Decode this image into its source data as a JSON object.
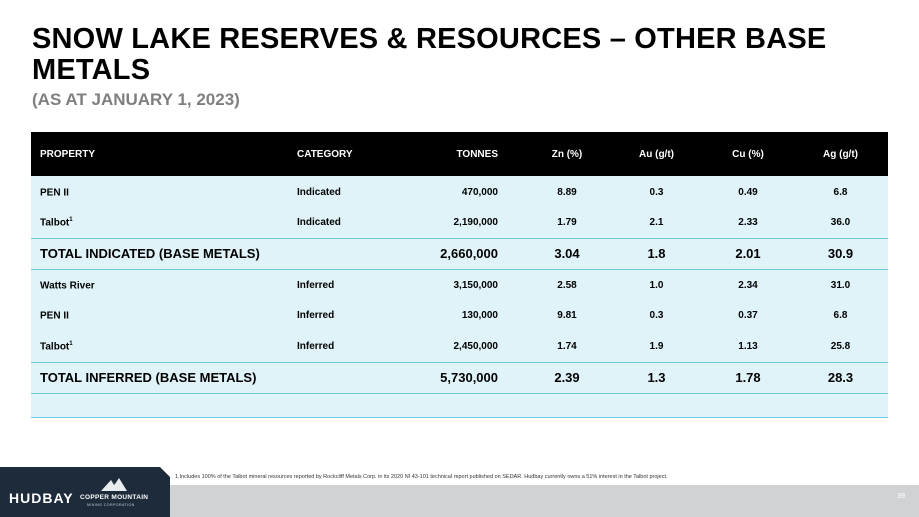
{
  "title": "SNOW LAKE RESERVES & RESOURCES – OTHER BASE METALS",
  "subtitle": "(AS AT JANUARY 1, 2023)",
  "table": {
    "headers": [
      "PROPERTY",
      "CATEGORY",
      "TONNES",
      "Zn (%)",
      "Au (g/t)",
      "Cu (%)",
      "Ag (g/t)"
    ],
    "indicated_rows": [
      {
        "property": "PEN II",
        "sup": "",
        "category": "Indicated",
        "tonnes": "470,000",
        "zn": "8.89",
        "au": "0.3",
        "cu": "0.49",
        "ag": "6.8"
      },
      {
        "property": "Talbot",
        "sup": "1",
        "category": "Indicated",
        "tonnes": "2,190,000",
        "zn": "1.79",
        "au": "2.1",
        "cu": "2.33",
        "ag": "36.0"
      }
    ],
    "total_indicated": {
      "label": "TOTAL INDICATED (BASE METALS)",
      "tonnes": "2,660,000",
      "zn": "3.04",
      "au": "1.8",
      "cu": "2.01",
      "ag": "30.9"
    },
    "inferred_rows": [
      {
        "property": "Watts River",
        "sup": "",
        "category": "Inferred",
        "tonnes": "3,150,000",
        "zn": "2.58",
        "au": "1.0",
        "cu": "2.34",
        "ag": "31.0"
      },
      {
        "property": "PEN II",
        "sup": "",
        "category": "Inferred",
        "tonnes": "130,000",
        "zn": "9.81",
        "au": "0.3",
        "cu": "0.37",
        "ag": "6.8"
      },
      {
        "property": "Talbot",
        "sup": "1",
        "category": "Inferred",
        "tonnes": "2,450,000",
        "zn": "1.74",
        "au": "1.9",
        "cu": "1.13",
        "ag": "25.8"
      }
    ],
    "total_inferred": {
      "label": "TOTAL INFERRED (BASE METALS)",
      "tonnes": "5,730,000",
      "zn": "2.39",
      "au": "1.3",
      "cu": "1.78",
      "ag": "28.3"
    }
  },
  "footnote": "1.Includes 100% of the Talbot mineral resources reported by Rockcliff Metals Corp. in its 2020 NI 43-101 technical report published on SEDAR. Hudbay currently owns a 51% interest in the Talbot project.",
  "page_number": "39",
  "logos": {
    "hudbay": "HUDBAY",
    "copper_mountain": "COPPER MOUNTAIN",
    "copper_mountain_sub": "MINING CORPORATION"
  },
  "colors": {
    "header_bg": "#000000",
    "row_bg": "#dff3f9",
    "divider": "#6ccbe0",
    "logo_bg": "#1d2b3a",
    "bottom_bar": "#d0d2d3"
  }
}
